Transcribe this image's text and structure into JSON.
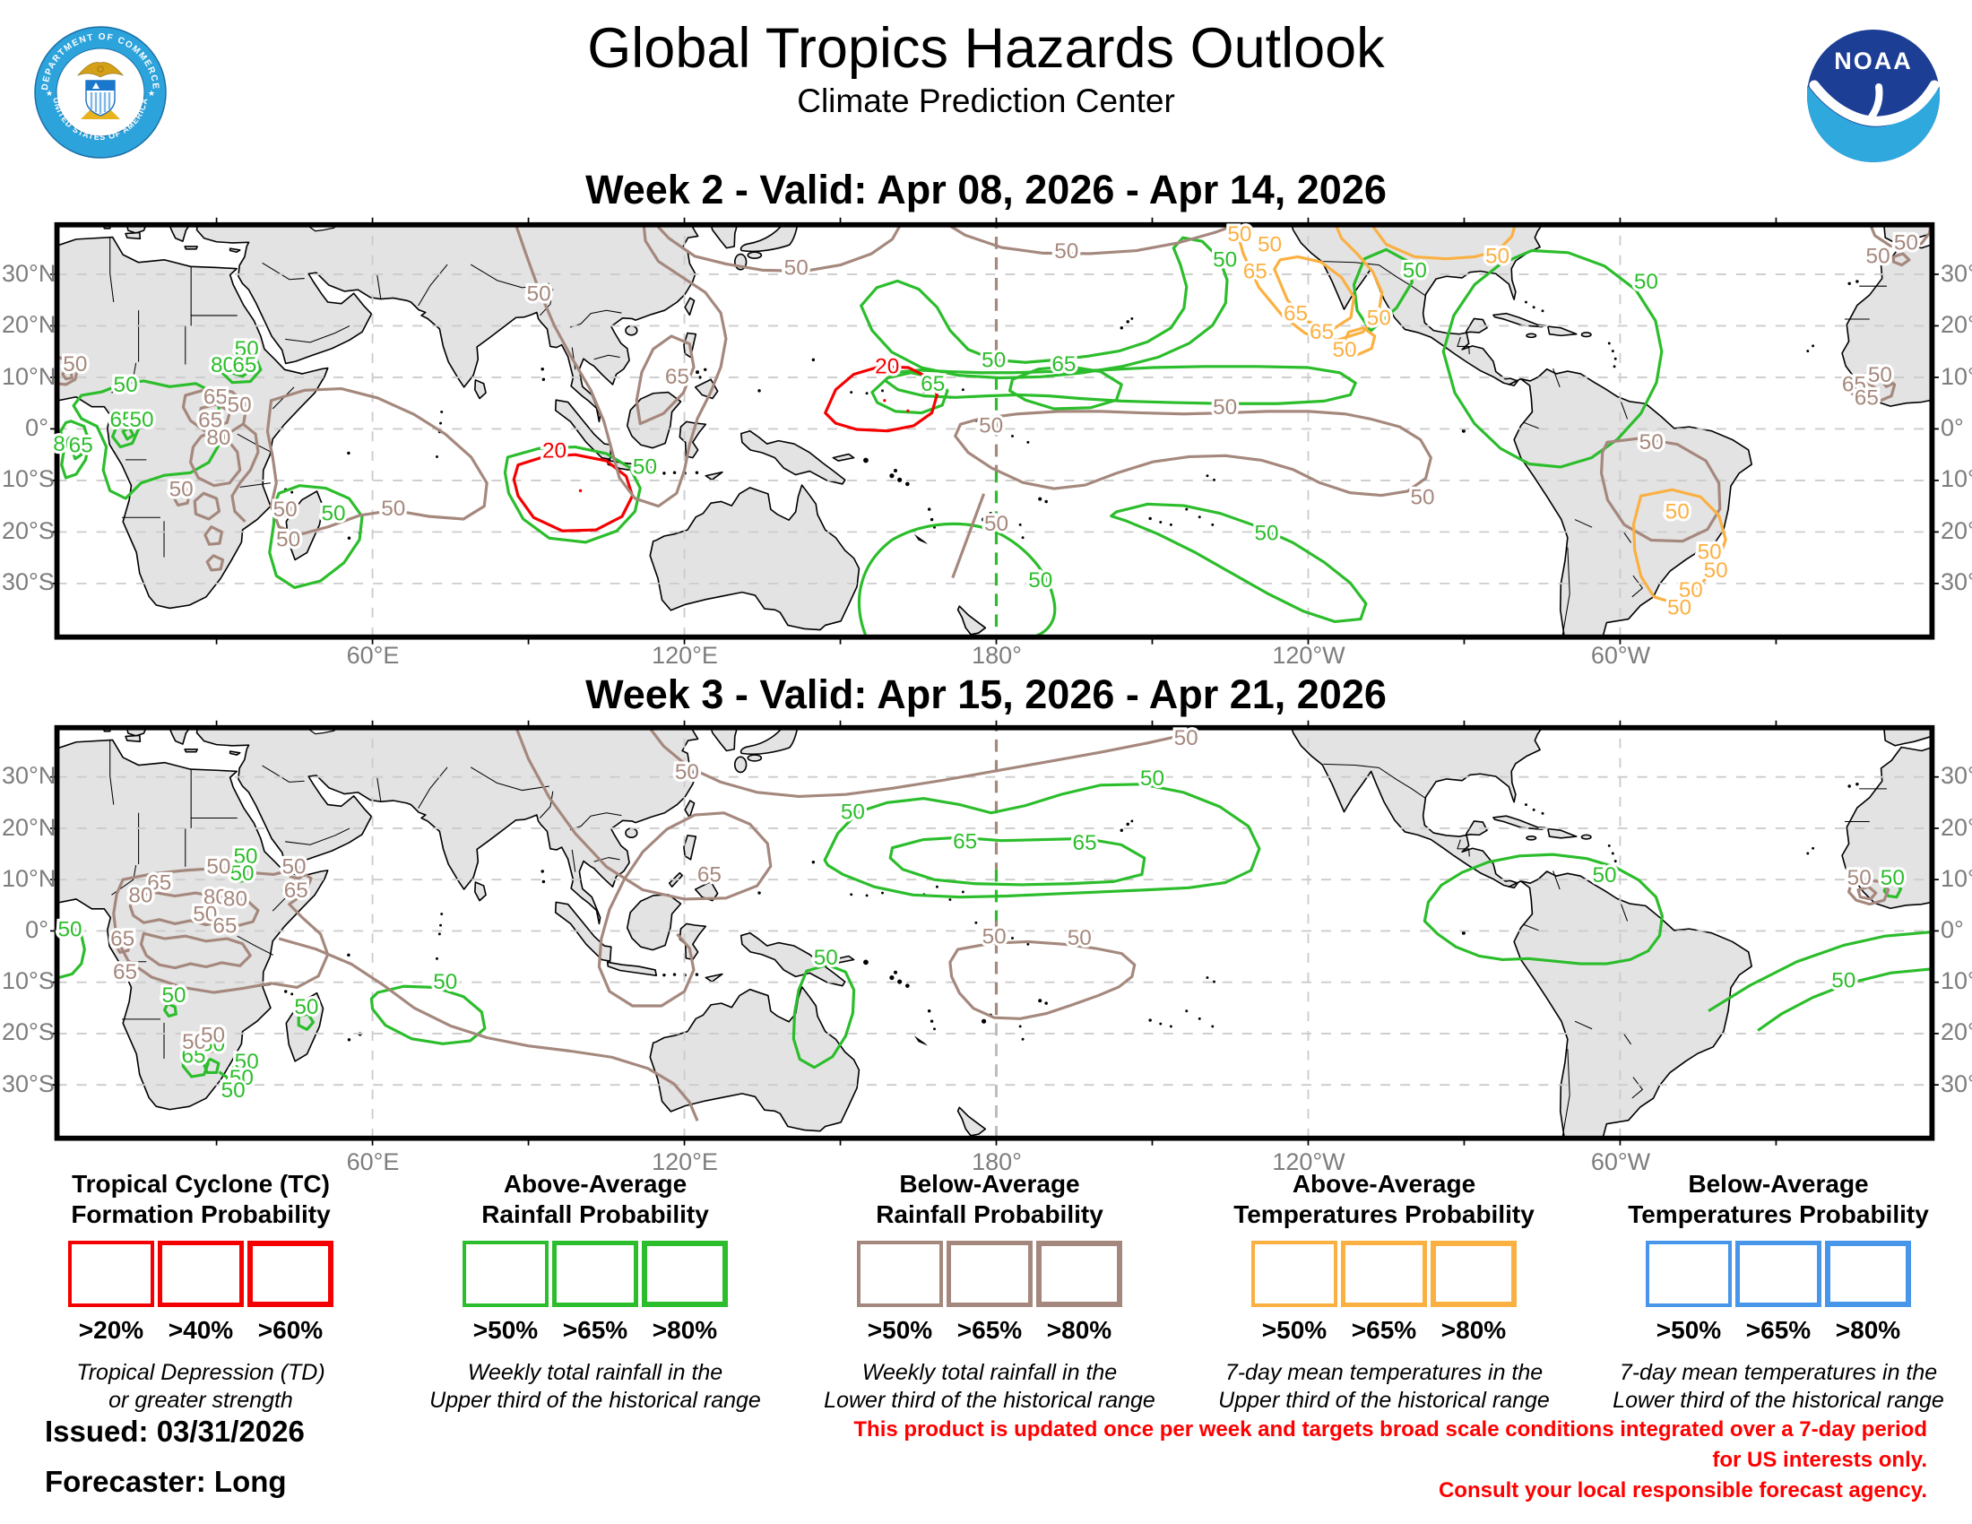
{
  "header": {
    "title": "Global Tropics Hazards Outlook",
    "subtitle": "Climate Prediction Center",
    "seal": {
      "ring_top": "DEPARTMENT OF COMMERCE",
      "ring_bottom": "UNITED STATES OF AMERICA"
    },
    "noaa": {
      "label": "NOAA"
    }
  },
  "maps": [
    {
      "id": "week2",
      "title": "Week 2 - Valid: Apr 08, 2026 - Apr 14, 2026",
      "contour_labels": [
        {
          "c": "green",
          "v": "50",
          "lon": 12.5,
          "lat": 8.6
        },
        {
          "c": "green",
          "v": "65",
          "lon": 11.8,
          "lat": 1.8
        },
        {
          "c": "green",
          "v": "50",
          "lon": 15.6,
          "lat": 1.8
        },
        {
          "c": "green",
          "v": "80",
          "lon": 0.9,
          "lat": -2.9
        },
        {
          "c": "green",
          "v": "65",
          "lon": 3.9,
          "lat": -3.1
        },
        {
          "c": "green",
          "v": "50",
          "lon": 35.8,
          "lat": 15.6
        },
        {
          "c": "green",
          "v": "80",
          "lon": 31.2,
          "lat": 12.4
        },
        {
          "c": "green",
          "v": "65",
          "lon": 35.4,
          "lat": 12.4
        },
        {
          "c": "green",
          "v": "50",
          "lon": 52.5,
          "lat": -16.4
        },
        {
          "c": "green",
          "v": "50",
          "lon": 112.4,
          "lat": -7.3
        },
        {
          "c": "red",
          "v": "20",
          "lon": 95,
          "lat": -4.2
        },
        {
          "c": "red",
          "v": "20",
          "lon": 159,
          "lat": 12.2
        },
        {
          "c": "green",
          "v": "65",
          "lon": 167.8,
          "lat": 8.8
        },
        {
          "c": "green",
          "v": "50",
          "lon": 179.5,
          "lat": 13.4
        },
        {
          "c": "green",
          "v": "65",
          "lon": 193,
          "lat": 12.6
        },
        {
          "c": "green",
          "v": "50",
          "lon": 224,
          "lat": 32.9
        },
        {
          "c": "green",
          "v": "50",
          "lon": 188.5,
          "lat": -29.3
        },
        {
          "c": "green",
          "v": "50",
          "lon": 232,
          "lat": -20.2
        },
        {
          "c": "green",
          "v": "50",
          "lon": 305,
          "lat": 28.6
        },
        {
          "c": "green",
          "v": "50",
          "lon": 260.5,
          "lat": 30.8
        },
        {
          "c": "brown",
          "v": "50",
          "lon": 2.8,
          "lat": 12.6
        },
        {
          "c": "brown",
          "v": "65",
          "lon": 29.8,
          "lat": 6.3
        },
        {
          "c": "brown",
          "v": "50",
          "lon": 34.4,
          "lat": 4.7
        },
        {
          "c": "brown",
          "v": "65",
          "lon": 28.8,
          "lat": 1.7
        },
        {
          "c": "brown",
          "v": "80",
          "lon": 30.4,
          "lat": -1.7
        },
        {
          "c": "brown",
          "v": "50",
          "lon": 23.2,
          "lat": -11.7
        },
        {
          "c": "brown",
          "v": "50",
          "lon": 43.2,
          "lat": -15.6
        },
        {
          "c": "brown",
          "v": "50",
          "lon": 43.8,
          "lat": -21.4
        },
        {
          "c": "brown",
          "v": "50",
          "lon": 64,
          "lat": -15.4
        },
        {
          "c": "brown",
          "v": "50",
          "lon": 92,
          "lat": 26.3
        },
        {
          "c": "brown",
          "v": "65",
          "lon": 118.6,
          "lat": 10.2
        },
        {
          "c": "brown",
          "v": "50",
          "lon": 141.5,
          "lat": 31.3
        },
        {
          "c": "brown",
          "v": "50",
          "lon": 193.5,
          "lat": 34.5
        },
        {
          "c": "brown",
          "v": "50",
          "lon": 179,
          "lat": 0.7
        },
        {
          "c": "brown",
          "v": "50",
          "lon": 224,
          "lat": 4.3
        },
        {
          "c": "brown",
          "v": "50",
          "lon": 262,
          "lat": -13.2
        },
        {
          "c": "brown",
          "v": "50",
          "lon": 180,
          "lat": -18.4
        },
        {
          "c": "brown",
          "v": "50",
          "lon": 306,
          "lat": -2.5
        },
        {
          "c": "brown",
          "v": "65",
          "lon": 345,
          "lat": 8.7
        },
        {
          "c": "brown",
          "v": "50",
          "lon": 350,
          "lat": 10.5
        },
        {
          "c": "brown",
          "v": "65",
          "lon": 347.4,
          "lat": 6.1
        },
        {
          "c": "brown",
          "v": "50",
          "lon": 349.6,
          "lat": 33.6
        },
        {
          "c": "brown",
          "v": "50",
          "lon": 355,
          "lat": 36.2
        },
        {
          "c": "orange",
          "v": "50",
          "lon": 226.8,
          "lat": 37.8
        },
        {
          "c": "orange",
          "v": "50",
          "lon": 232.6,
          "lat": 35.8
        },
        {
          "c": "orange",
          "v": "65",
          "lon": 229.8,
          "lat": 30.6
        },
        {
          "c": "orange",
          "v": "65",
          "lon": 237.6,
          "lat": 22.4
        },
        {
          "c": "orange",
          "v": "65",
          "lon": 242.6,
          "lat": 18.9
        },
        {
          "c": "orange",
          "v": "50",
          "lon": 247,
          "lat": 15.4
        },
        {
          "c": "orange",
          "v": "50",
          "lon": 253.6,
          "lat": 21.6
        },
        {
          "c": "orange",
          "v": "50",
          "lon": 276.4,
          "lat": 33.6
        },
        {
          "c": "orange",
          "v": "50",
          "lon": 311,
          "lat": -16
        },
        {
          "c": "orange",
          "v": "50",
          "lon": 317.2,
          "lat": -23.8
        },
        {
          "c": "orange",
          "v": "50",
          "lon": 318.4,
          "lat": -27.4
        },
        {
          "c": "orange",
          "v": "50",
          "lon": 313.6,
          "lat": -31.2
        },
        {
          "c": "orange",
          "v": "50",
          "lon": 311.4,
          "lat": -34.6
        }
      ]
    },
    {
      "id": "week3",
      "title": "Week 3 - Valid: Apr 15, 2026 - Apr 21, 2026",
      "contour_labels": [
        {
          "c": "green",
          "v": "50",
          "lon": 1.8,
          "lat": 0.3
        },
        {
          "c": "green",
          "v": "50",
          "lon": 35.6,
          "lat": 14.6
        },
        {
          "c": "green",
          "v": "50",
          "lon": 34.9,
          "lat": 11.3
        },
        {
          "c": "green",
          "v": "50",
          "lon": 21.8,
          "lat": -12.5
        },
        {
          "c": "green",
          "v": "65",
          "lon": 25.6,
          "lat": -24.3
        },
        {
          "c": "green",
          "v": "50",
          "lon": 29.3,
          "lat": -22
        },
        {
          "c": "green",
          "v": "50",
          "lon": 35.8,
          "lat": -25.4
        },
        {
          "c": "green",
          "v": "50",
          "lon": 34.8,
          "lat": -28.6
        },
        {
          "c": "green",
          "v": "50",
          "lon": 33.2,
          "lat": -31
        },
        {
          "c": "green",
          "v": "50",
          "lon": 47.3,
          "lat": -14.8
        },
        {
          "c": "green",
          "v": "50",
          "lon": 74,
          "lat": -9.9
        },
        {
          "c": "green",
          "v": "50",
          "lon": 152.4,
          "lat": 23.2
        },
        {
          "c": "green",
          "v": "50",
          "lon": 210,
          "lat": 29.8
        },
        {
          "c": "green",
          "v": "65",
          "lon": 174,
          "lat": 17.5
        },
        {
          "c": "green",
          "v": "65",
          "lon": 197,
          "lat": 17.2
        },
        {
          "c": "green",
          "v": "50",
          "lon": 147.2,
          "lat": -5.2
        },
        {
          "c": "green",
          "v": "50",
          "lon": 297,
          "lat": 10.9
        },
        {
          "c": "green",
          "v": "50",
          "lon": 343,
          "lat": -9.6
        },
        {
          "c": "green",
          "v": "50",
          "lon": 352.4,
          "lat": 10.4
        },
        {
          "c": "brown",
          "v": "50",
          "lon": 30.4,
          "lat": 12.6
        },
        {
          "c": "brown",
          "v": "65",
          "lon": 19,
          "lat": 9.4
        },
        {
          "c": "brown",
          "v": "80",
          "lon": 15.4,
          "lat": 7
        },
        {
          "c": "brown",
          "v": "80",
          "lon": 29.8,
          "lat": 6.6
        },
        {
          "c": "brown",
          "v": "80",
          "lon": 33.6,
          "lat": 6.3
        },
        {
          "c": "brown",
          "v": "50",
          "lon": 27.8,
          "lat": 3.3
        },
        {
          "c": "brown",
          "v": "65",
          "lon": 31.6,
          "lat": 1
        },
        {
          "c": "brown",
          "v": "65",
          "lon": 11.9,
          "lat": -1.5
        },
        {
          "c": "brown",
          "v": "65",
          "lon": 12.4,
          "lat": -8
        },
        {
          "c": "brown",
          "v": "50",
          "lon": 44.9,
          "lat": 12.6
        },
        {
          "c": "brown",
          "v": "65",
          "lon": 45.3,
          "lat": 7.9
        },
        {
          "c": "brown",
          "v": "50",
          "lon": 25.7,
          "lat": -21.6
        },
        {
          "c": "brown",
          "v": "50",
          "lon": 29.3,
          "lat": -20.3
        },
        {
          "c": "brown",
          "v": "65",
          "lon": 124.8,
          "lat": 11
        },
        {
          "c": "brown",
          "v": "50",
          "lon": 120.5,
          "lat": 31
        },
        {
          "c": "brown",
          "v": "50",
          "lon": 216.5,
          "lat": 37.6
        },
        {
          "c": "brown",
          "v": "50",
          "lon": 179.6,
          "lat": -1.1
        },
        {
          "c": "brown",
          "v": "50",
          "lon": 196,
          "lat": -1.3
        },
        {
          "c": "brown",
          "v": "50",
          "lon": 346,
          "lat": 10.4
        }
      ]
    }
  ],
  "axis": {
    "lat_ticks": [
      {
        "v": 30,
        "label": "30°N"
      },
      {
        "v": 20,
        "label": "20°N"
      },
      {
        "v": 10,
        "label": "10°N"
      },
      {
        "v": 0,
        "label": "0°"
      },
      {
        "v": -10,
        "label": "10°S"
      },
      {
        "v": -20,
        "label": "20°S"
      },
      {
        "v": -30,
        "label": "30°S"
      }
    ],
    "lon_ticks": [
      {
        "v": 60,
        "label": "60°E"
      },
      {
        "v": 120,
        "label": "120°E"
      },
      {
        "v": 180,
        "label": "180°"
      },
      {
        "v": 240,
        "label": "120°W"
      },
      {
        "v": 300,
        "label": "60°W"
      }
    ]
  },
  "legend": {
    "sections": [
      {
        "title_lines": [
          "Tropical Cyclone (TC)",
          "Formation Probability"
        ],
        "color": "#f50000",
        "thresholds": [
          ">20%",
          ">40%",
          ">60%"
        ],
        "desc_lines": [
          "Tropical Depression (TD)",
          "or greater strength"
        ]
      },
      {
        "title_lines": [
          "Above-Average",
          "Rainfall Probability"
        ],
        "color": "#2bbd2b",
        "thresholds": [
          ">50%",
          ">65%",
          ">80%"
        ],
        "desc_lines": [
          "Weekly total rainfall in the",
          "Upper third of the historical range"
        ]
      },
      {
        "title_lines": [
          "Below-Average",
          "Rainfall Probability"
        ],
        "color": "#a5887d",
        "thresholds": [
          ">50%",
          ">65%",
          ">80%"
        ],
        "desc_lines": [
          "Weekly total rainfall in the",
          "Lower third of the historical range"
        ]
      },
      {
        "title_lines": [
          "Above-Average",
          "Temperatures Probability"
        ],
        "color": "#fbb042",
        "thresholds": [
          ">50%",
          ">65%",
          ">80%"
        ],
        "desc_lines": [
          "7-day mean temperatures in the",
          "Upper third of the historical range"
        ]
      },
      {
        "title_lines": [
          "Below-Average",
          "Temperatures Probability"
        ],
        "color": "#4796ea",
        "thresholds": [
          ">50%",
          ">65%",
          ">80%"
        ],
        "desc_lines": [
          "7-day mean temperatures in the",
          "Lower third of the historical range"
        ]
      }
    ]
  },
  "footer": {
    "issued": "Issued: 03/31/2026",
    "forecaster": "Forecaster: Long",
    "disclaimer_lines": [
      "This product is updated once per week and targets broad scale conditions integrated over a 7-day period for US interests only.",
      "Consult your local responsible forecast agency."
    ]
  },
  "colors": {
    "green": "#2bbd2b",
    "brown": "#a5887d",
    "red": "#f50000",
    "orange": "#fbb042",
    "blue": "#4796ea",
    "land": "#e3e3e3"
  }
}
